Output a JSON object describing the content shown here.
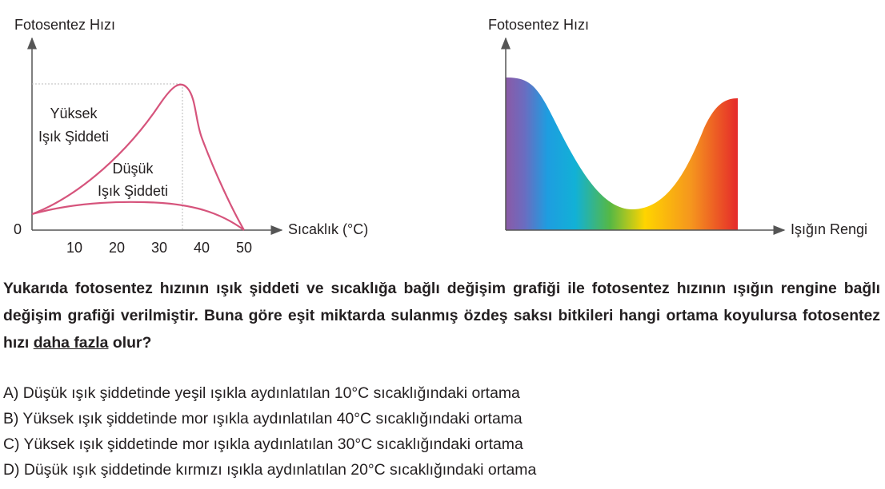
{
  "left_graph": {
    "y_axis_label": "Fotosentez Hızı",
    "x_axis_label": "Sıcaklık (°C)",
    "x_ticks": [
      0,
      10,
      20,
      30,
      40,
      50
    ],
    "curve_labels": [
      [
        "Yüksek",
        "Işık Şiddeti"
      ],
      [
        "Düşük",
        "Işık Şiddeti"
      ]
    ]
  },
  "right_graph": {
    "y_axis_label": "Fotosentez Hızı",
    "x_axis_label": "Işığın Rengi"
  },
  "question": {
    "text_before": "Yukarıda fotosentez hızının ışık şiddeti ve sıcaklığa bağlı değişim grafiği ile fotosentez hızının ışığın rengine bağlı değişim grafiği verilmiştir. Buna göre eşit miktarda sulanmış özdeş saksı bitkileri hangi ortama koyulursa fotosentez hızı ",
    "underlined": "daha fazla",
    "text_after": " olur?"
  },
  "options": [
    "A) Düşük ışık şiddetinde yeşil ışıkla aydınlatılan 10°C sıcaklığındaki ortama",
    "B) Yüksek ışık şiddetinde mor ışıkla aydınlatılan 40°C sıcaklığındaki ortama",
    "C) Yüksek ışık şiddetinde mor ışıkla aydınlatılan 30°C sıcaklığındaki ortama",
    "D) Düşük ışık şiddetinde kırmızı ışıkla aydınlatılan 20°C sıcaklığındaki ortama"
  ]
}
